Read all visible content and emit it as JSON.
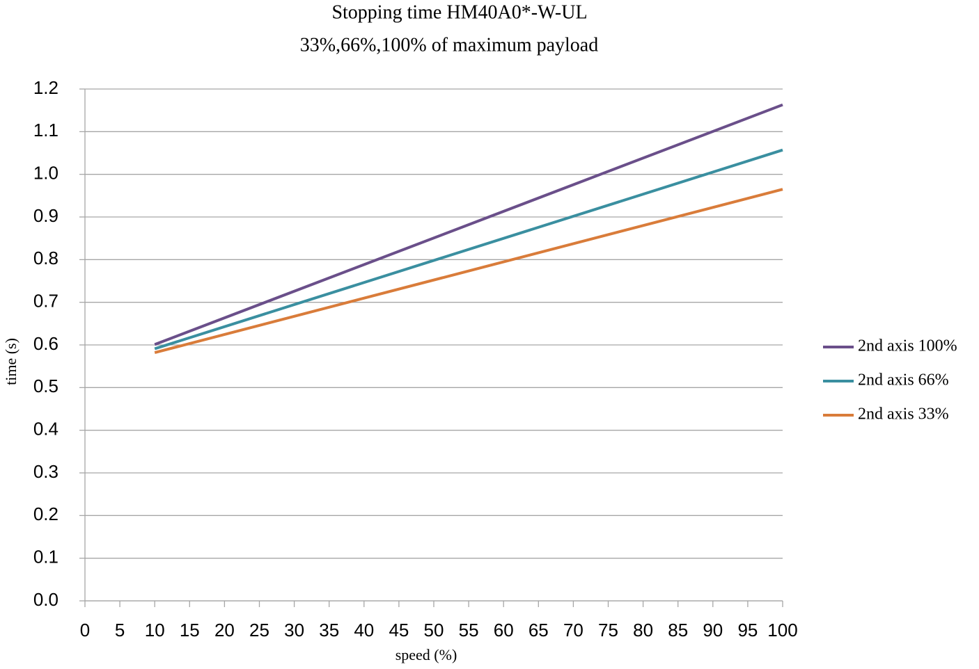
{
  "chart_data": {
    "type": "line",
    "title": "Stopping time HM40A0*-W-UL",
    "subtitle": "33%,66%,100% of maximum payload",
    "x_label": "speed (%)",
    "y_label": "time (s)",
    "x": [
      10,
      100
    ],
    "series": [
      {
        "name": "2nd axis 100%",
        "color": "#6a4f8a",
        "values": [
          0.601,
          1.163
        ]
      },
      {
        "name": "2nd axis 66%",
        "color": "#3a8fa0",
        "values": [
          0.591,
          1.057
        ]
      },
      {
        "name": "2nd axis 33%",
        "color": "#d97c3a",
        "values": [
          0.582,
          0.965
        ]
      }
    ],
    "xlim": [
      0,
      100
    ],
    "xticks": [
      0,
      5,
      10,
      15,
      20,
      25,
      30,
      35,
      40,
      45,
      50,
      55,
      60,
      65,
      70,
      75,
      80,
      85,
      90,
      95,
      100
    ],
    "ylim": [
      0,
      1.2
    ],
    "yticks": [
      {
        "value": 0,
        "label": "0.0"
      },
      0.1,
      0.2,
      0.3,
      0.4,
      0.5,
      0.6,
      0.7,
      0.8,
      0.9,
      {
        "value": 1,
        "label": "1.0"
      },
      1.1,
      1.2
    ],
    "grid": true,
    "legend": "right"
  }
}
